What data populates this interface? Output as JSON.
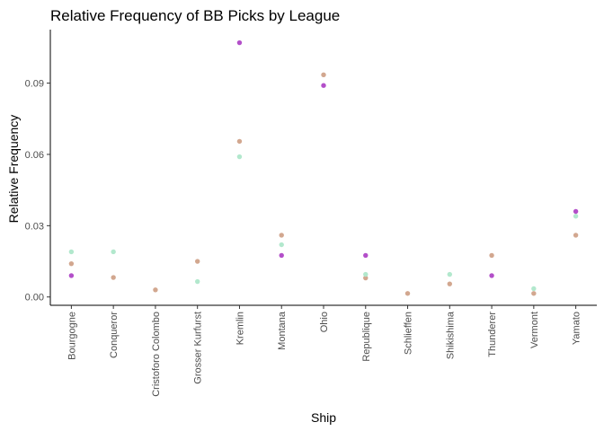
{
  "chart_data": {
    "type": "scatter",
    "title": "Relative Frequency of BB Picks by League",
    "xlabel": "Ship",
    "ylabel": "Relative Frequency",
    "categories": [
      "Bourgogne",
      "Conqueror",
      "Cristoforo Colombo",
      "Grosser Kurfurst",
      "Kremlin",
      "Montana",
      "Ohio",
      "Republique",
      "Schlieffen",
      "Shikishima",
      "Thunderer",
      "Vermont",
      "Yamato"
    ],
    "yticks": [
      "0.00",
      "0.03",
      "0.06",
      "0.09"
    ],
    "ylim": [
      -0.0035,
      0.1125
    ],
    "grid": false,
    "legend": "none",
    "series": [
      {
        "color": "#d2a78f",
        "values": [
          0.014,
          0.0082,
          0.003,
          0.015,
          0.0655,
          0.026,
          0.0935,
          0.008,
          0.0015,
          0.0055,
          0.0175,
          0.0015,
          0.026
        ]
      },
      {
        "color": "#b2e8cd",
        "values": [
          0.019,
          0.019,
          null,
          0.0065,
          0.059,
          0.022,
          null,
          0.0095,
          null,
          0.0095,
          null,
          0.0035,
          0.034
        ]
      },
      {
        "color": "#b34fc9",
        "values": [
          0.009,
          null,
          null,
          null,
          0.107,
          0.0175,
          0.089,
          0.0175,
          null,
          null,
          0.009,
          null,
          0.036
        ]
      }
    ]
  }
}
